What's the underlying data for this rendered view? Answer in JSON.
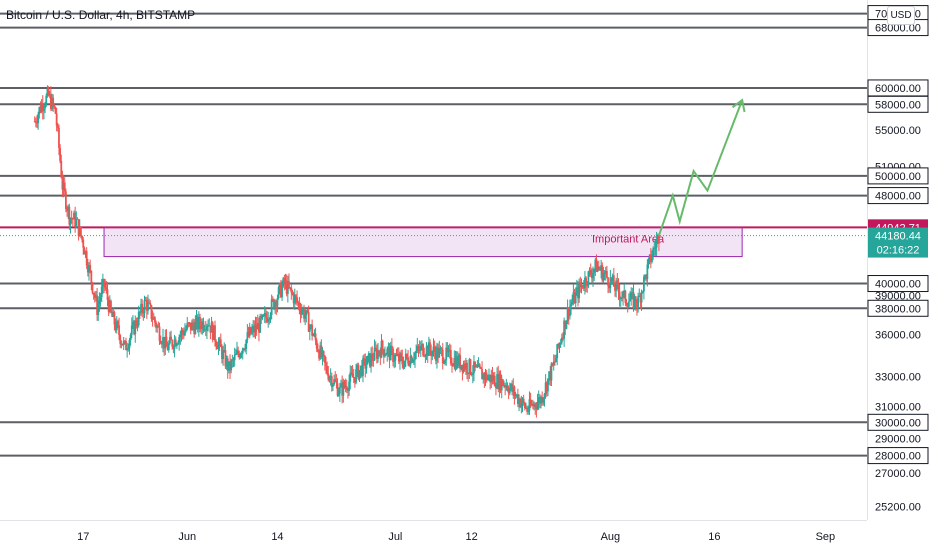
{
  "title": "Bitcoin / U.S. Dollar, 4h, BITSTAMP",
  "currency_button": "USD",
  "colors": {
    "up": "#26a69a",
    "down": "#ef5350",
    "level_line": "#5d5f66",
    "resistance": "#c2185b",
    "zone_fill": "rgba(186,104,200,0.18)",
    "projection": "#66bb6a",
    "current_price_bg": "#26a69a"
  },
  "chart_data": {
    "type": "candlestick",
    "title": "Bitcoin / U.S. Dollar, 4h, BITSTAMP",
    "xlabel": "",
    "ylabel": "",
    "scale": "log",
    "ylim": [
      24500,
      72000
    ],
    "x_ticks": [
      "17",
      "Jun",
      "14",
      "Jul",
      "12",
      "Aug",
      "16",
      "Sep"
    ],
    "y_ticks": [
      70000,
      68000,
      60000,
      58000,
      55000,
      51000,
      50000,
      48000,
      40000,
      39000,
      38000,
      36000,
      33000,
      31000,
      30000,
      29000,
      28000,
      27000,
      25200
    ],
    "horizontal_levels": [
      70000,
      68000,
      60000,
      58000,
      50000,
      48000,
      40000,
      38000,
      30000,
      28000
    ],
    "resistance_level": 44942.71,
    "current_price": 44180.44,
    "countdown": "02:16:22",
    "zone": {
      "label": "Important Area",
      "low": 42300,
      "high": 44942.71,
      "start": "May 20",
      "end": "Aug 20"
    },
    "price_path": [
      [
        "May 10",
        56000
      ],
      [
        "May 11",
        58000
      ],
      [
        "May 12",
        59000
      ],
      [
        "May 13",
        57000
      ],
      [
        "May 14",
        49000
      ],
      [
        "May 15",
        46000
      ],
      [
        "May 16",
        45500
      ],
      [
        "May 17",
        43500
      ],
      [
        "May 19",
        38000
      ],
      [
        "May 20",
        40000
      ],
      [
        "May 21",
        37500
      ],
      [
        "May 23",
        35000
      ],
      [
        "May 26",
        38500
      ],
      [
        "May 29",
        35000
      ],
      [
        "Jun 1",
        36500
      ],
      [
        "Jun 4",
        37000
      ],
      [
        "Jun 7",
        33500
      ],
      [
        "Jun 10",
        36000
      ],
      [
        "Jun 12",
        37000
      ],
      [
        "Jun 15",
        40000
      ],
      [
        "Jun 18",
        37500
      ],
      [
        "Jun 21",
        33500
      ],
      [
        "Jun 23",
        32000
      ],
      [
        "Jun 26",
        33500
      ],
      [
        "Jun 29",
        35000
      ],
      [
        "Jul 2",
        34000
      ],
      [
        "Jul 5",
        35000
      ],
      [
        "Jul 8",
        34500
      ],
      [
        "Jul 11",
        33800
      ],
      [
        "Jul 14",
        33000
      ],
      [
        "Jul 17",
        32500
      ],
      [
        "Jul 20",
        30800
      ],
      [
        "Jul 22",
        31500
      ],
      [
        "Jul 24",
        34000
      ],
      [
        "Jul 26",
        38000
      ],
      [
        "Jul 28",
        40000
      ],
      [
        "Jul 30",
        41500
      ],
      [
        "Aug 1",
        40200
      ],
      [
        "Aug 3",
        38800
      ],
      [
        "Aug 5",
        38500
      ],
      [
        "Aug 6",
        40500
      ],
      [
        "Aug 7",
        42500
      ],
      [
        "Aug 8",
        44180
      ]
    ],
    "projection": [
      [
        "Aug 8",
        44180
      ],
      [
        "Aug 10",
        48000
      ],
      [
        "Aug 11",
        45500
      ],
      [
        "Aug 13",
        50500
      ],
      [
        "Aug 15",
        48500
      ],
      [
        "Aug 20",
        58500
      ]
    ]
  }
}
